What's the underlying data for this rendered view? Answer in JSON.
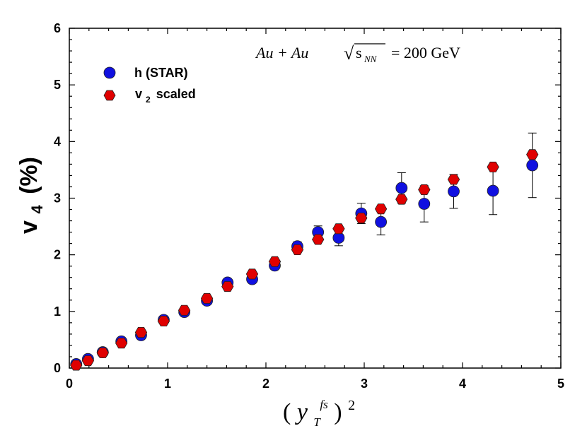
{
  "chart_data": {
    "type": "scatter",
    "title": "",
    "annotation": {
      "prefix": "Au + Au",
      "sqrt_symbol": "√",
      "s": "s",
      "sub": "NN",
      "suffix": "= 200 GeV"
    },
    "xlabel": {
      "open": "(",
      "var": "y",
      "sub": "T",
      "sup": "fs",
      "close": ")",
      "power": "2"
    },
    "ylabel": {
      "main": "v",
      "sub": "4",
      "unit": "(%)"
    },
    "xlim": [
      0,
      5
    ],
    "ylim": [
      0,
      6
    ],
    "xticks": [
      0,
      1,
      2,
      3,
      4,
      5
    ],
    "yticks": [
      0,
      1,
      2,
      3,
      4,
      5,
      6
    ],
    "xtick_labels": [
      "0",
      "1",
      "2",
      "3",
      "4",
      "5"
    ],
    "ytick_labels": [
      "0",
      "1",
      "2",
      "3",
      "4",
      "5",
      "6"
    ],
    "legend_position": "top-left",
    "series": [
      {
        "name": "h (STAR)",
        "legend_main": "h  (STAR)",
        "marker": "circle",
        "color": "#1010e0",
        "x": [
          0.07,
          0.19,
          0.34,
          0.53,
          0.73,
          0.96,
          1.17,
          1.4,
          1.61,
          1.86,
          2.09,
          2.32,
          2.53,
          2.74,
          2.97,
          3.17,
          3.38,
          3.61,
          3.91,
          4.31,
          4.71
        ],
        "y": [
          0.07,
          0.16,
          0.28,
          0.47,
          0.58,
          0.85,
          0.99,
          1.19,
          1.51,
          1.57,
          1.81,
          2.15,
          2.4,
          2.3,
          2.73,
          2.58,
          3.18,
          2.9,
          3.12,
          3.13,
          3.58
        ],
        "err": [
          0.02,
          0.02,
          0.02,
          0.03,
          0.03,
          0.04,
          0.04,
          0.05,
          0.05,
          0.06,
          0.07,
          0.08,
          0.11,
          0.14,
          0.18,
          0.23,
          0.27,
          0.32,
          0.3,
          0.42,
          0.57
        ]
      },
      {
        "name": "v2 scaled",
        "legend_main": "v",
        "legend_sub": "2",
        "legend_rest": "scaled",
        "marker": "hexagon",
        "color": "#e00000",
        "x": [
          0.07,
          0.19,
          0.34,
          0.53,
          0.73,
          0.96,
          1.17,
          1.4,
          1.61,
          1.86,
          2.09,
          2.32,
          2.53,
          2.74,
          2.97,
          3.17,
          3.38,
          3.61,
          3.91,
          4.31,
          4.71
        ],
        "y": [
          0.05,
          0.13,
          0.27,
          0.44,
          0.63,
          0.83,
          1.02,
          1.23,
          1.44,
          1.66,
          1.88,
          2.09,
          2.27,
          2.46,
          2.65,
          2.81,
          2.98,
          3.15,
          3.33,
          3.55,
          3.77
        ],
        "err": []
      }
    ]
  }
}
